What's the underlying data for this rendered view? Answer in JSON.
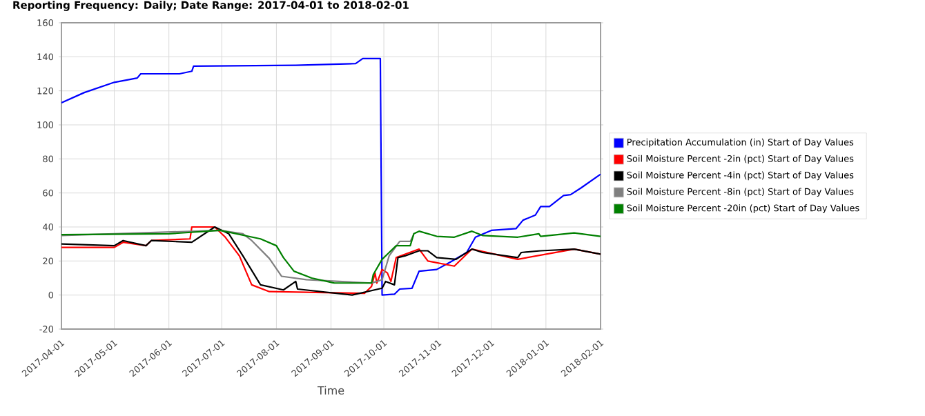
{
  "chart_data": {
    "type": "line",
    "title": "Reporting Frequency: Daily; Date Range: 2017-04-01 to 2018-02-01",
    "xlabel": "Time",
    "xlim": [
      "2017-04-01",
      "2018-02-01"
    ],
    "xticks": [
      "2017-04-01",
      "2017-05-01",
      "2017-06-01",
      "2017-07-01",
      "2017-08-01",
      "2017-09-01",
      "2017-10-01",
      "2017-11-01",
      "2017-12-01",
      "2018-01-01",
      "2018-02-01"
    ],
    "ylim": [
      -20,
      160
    ],
    "yticks": [
      -20,
      0,
      20,
      40,
      60,
      80,
      100,
      120,
      140,
      160
    ],
    "grid": true,
    "legend": "right",
    "series": [
      {
        "name": "Precipitation Accumulation (in) Start of Day Values",
        "color": "#0000ff",
        "x": [
          "2017-04-01",
          "2017-04-14",
          "2017-05-01",
          "2017-05-14",
          "2017-05-16",
          "2017-06-07",
          "2017-06-14",
          "2017-06-15",
          "2017-08-12",
          "2017-09-15",
          "2017-09-19",
          "2017-09-29",
          "2017-09-30",
          "2017-10-07",
          "2017-10-10",
          "2017-10-17",
          "2017-10-21",
          "2017-10-31",
          "2017-11-08",
          "2017-11-17",
          "2017-11-22",
          "2017-12-01",
          "2017-12-15",
          "2017-12-19",
          "2017-12-26",
          "2017-12-29",
          "2018-01-03",
          "2018-01-11",
          "2018-01-15",
          "2018-01-21",
          "2018-02-01"
        ],
        "values": [
          113,
          119,
          125,
          127.5,
          130,
          130,
          131.5,
          134.5,
          135,
          136,
          139,
          139,
          0,
          0.5,
          3.5,
          4,
          14,
          15,
          19.5,
          25,
          34,
          38,
          39,
          44,
          47,
          52,
          52,
          58.5,
          59,
          63,
          71
        ]
      },
      {
        "name": "Soil Moisture Percent -2in (pct) Start of Day Values",
        "color": "#ff0000",
        "x": [
          "2017-04-01",
          "2017-05-01",
          "2017-05-06",
          "2017-05-19",
          "2017-05-22",
          "2017-06-13",
          "2017-06-14",
          "2017-06-27",
          "2017-07-03",
          "2017-07-11",
          "2017-07-18",
          "2017-07-28",
          "2017-09-20",
          "2017-09-24",
          "2017-09-26",
          "2017-09-27",
          "2017-09-30",
          "2017-10-03",
          "2017-10-05",
          "2017-10-08",
          "2017-10-21",
          "2017-10-26",
          "2017-11-10",
          "2017-11-20",
          "2017-12-16",
          "2018-01-17",
          "2018-02-01"
        ],
        "values": [
          28,
          28,
          31,
          29,
          32,
          33,
          40,
          40,
          34,
          23,
          6,
          2,
          1,
          5,
          13,
          7,
          15,
          13,
          8,
          22,
          27,
          20,
          17,
          27,
          21,
          27,
          24
        ]
      },
      {
        "name": "Soil Moisture Percent -4in (pct) Start of Day Values",
        "color": "#000000",
        "x": [
          "2017-04-01",
          "2017-05-01",
          "2017-05-06",
          "2017-05-19",
          "2017-05-22",
          "2017-06-14",
          "2017-06-27",
          "2017-07-05",
          "2017-07-13",
          "2017-07-23",
          "2017-08-05",
          "2017-08-12",
          "2017-08-13",
          "2017-09-13",
          "2017-09-30",
          "2017-10-02",
          "2017-10-07",
          "2017-10-09",
          "2017-10-13",
          "2017-10-21",
          "2017-10-26",
          "2017-10-31",
          "2017-11-11",
          "2017-11-20",
          "2017-11-26",
          "2017-12-16",
          "2017-12-18",
          "2017-12-29",
          "2018-01-17",
          "2018-02-01"
        ],
        "values": [
          30,
          29,
          32,
          29,
          32,
          31,
          40,
          36,
          23,
          6,
          3,
          8,
          3.5,
          0,
          4,
          8,
          6,
          22,
          23,
          26,
          26,
          22,
          21,
          27,
          25,
          22,
          25,
          26,
          27,
          24
        ]
      },
      {
        "name": "Soil Moisture Percent -8in (pct) Start of Day Values",
        "color": "#808080",
        "x": [
          "2017-04-01",
          "2017-06-30",
          "2017-07-13",
          "2017-07-18",
          "2017-07-28",
          "2017-08-04",
          "2017-08-18",
          "2017-09-24",
          "2017-09-30",
          "2017-10-04",
          "2017-10-10",
          "2017-10-16",
          "2017-10-18"
        ],
        "values": [
          35,
          38,
          36,
          32,
          21.5,
          11,
          9,
          7,
          9,
          23,
          31.5,
          31.5,
          35.5
        ]
      },
      {
        "name": "Soil Moisture Percent -20in (pct) Start of Day Values",
        "color": "#008000",
        "x": [
          "2017-04-01",
          "2017-06-01",
          "2017-06-30",
          "2017-07-23",
          "2017-08-01",
          "2017-08-05",
          "2017-08-11",
          "2017-08-21",
          "2017-09-03",
          "2017-09-24",
          "2017-09-25",
          "2017-09-30",
          "2017-10-03",
          "2017-10-08",
          "2017-10-16",
          "2017-10-18",
          "2017-10-21",
          "2017-10-31",
          "2017-11-10",
          "2017-11-20",
          "2017-11-26",
          "2017-12-16",
          "2017-12-28",
          "2017-12-29",
          "2018-01-17",
          "2018-02-01"
        ],
        "values": [
          35.5,
          36,
          38,
          33,
          29,
          22,
          14,
          10,
          7,
          7,
          12,
          21,
          24,
          29,
          29,
          36,
          37.5,
          34.5,
          34,
          37.5,
          35,
          34,
          36,
          34.5,
          36.5,
          34.5
        ]
      }
    ]
  }
}
